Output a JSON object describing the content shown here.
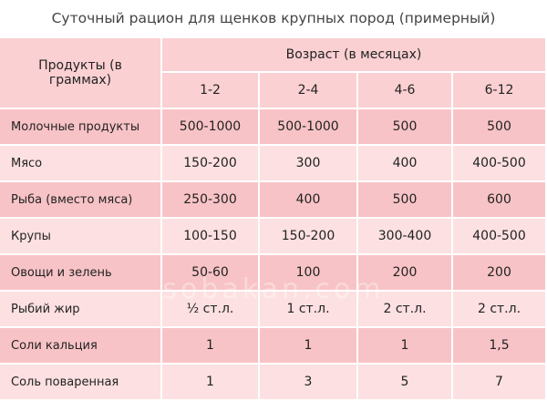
{
  "title": "Суточный рацион для щенков крупных пород (примерный)",
  "table": {
    "product_header": "Продукты (в граммах)",
    "age_header": "Возраст (в месяцах)",
    "ages": [
      "1-2",
      "2-4",
      "4-6",
      "6-12"
    ],
    "rows": [
      {
        "product": "Молочные продукты",
        "values": [
          "500-1000",
          "500-1000",
          "500",
          "500"
        ]
      },
      {
        "product": "Мясо",
        "values": [
          "150-200",
          "300",
          "400",
          "400-500"
        ]
      },
      {
        "product": "Рыба (вместо мяса)",
        "values": [
          "250-300",
          "400",
          "500",
          "600"
        ]
      },
      {
        "product": "Крупы",
        "values": [
          "100-150",
          "150-200",
          "300-400",
          "400-500"
        ]
      },
      {
        "product": "Овощи и зелень",
        "values": [
          "50-60",
          "100",
          "200",
          "200"
        ]
      },
      {
        "product": "Рыбий жир",
        "values": [
          "½ ст.л.",
          "1 ст.л.",
          "2 ст.л.",
          "2 ст.л."
        ]
      },
      {
        "product": "Соли кальция",
        "values": [
          "1",
          "1",
          "1",
          "1,5"
        ]
      },
      {
        "product": "Соль поваренная",
        "values": [
          "1",
          "3",
          "5",
          "7"
        ]
      }
    ]
  },
  "watermark": "sobakan.com"
}
